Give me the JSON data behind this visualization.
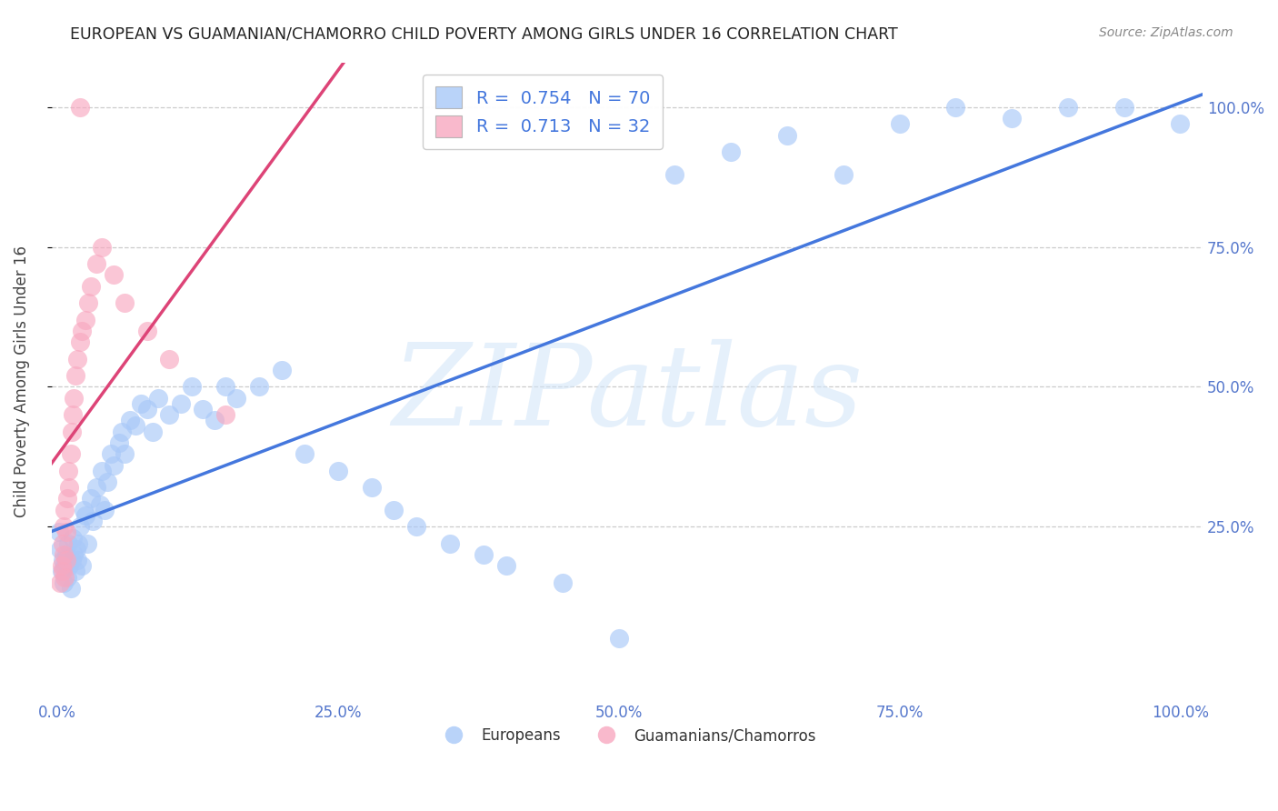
{
  "title": "EUROPEAN VS GUAMANIAN/CHAMORRO CHILD POVERTY AMONG GIRLS UNDER 16 CORRELATION CHART",
  "source": "Source: ZipAtlas.com",
  "ylabel": "Child Poverty Among Girls Under 16",
  "watermark": "ZIPatlas",
  "xlim": [
    -0.005,
    1.02
  ],
  "ylim": [
    -0.06,
    1.08
  ],
  "xticks": [
    0,
    0.25,
    0.5,
    0.75,
    1.0
  ],
  "yticks": [
    0.25,
    0.5,
    0.75,
    1.0
  ],
  "xticklabels": [
    "0.0%",
    "25.0%",
    "50.0%",
    "75.0%",
    "100.0%"
  ],
  "yticklabels": [
    "25.0%",
    "50.0%",
    "75.0%",
    "100.0%"
  ],
  "european_color": "#A8C8F8",
  "guamanian_color": "#F8A8C0",
  "trendline_european_color": "#4477DD",
  "trendline_guamanian_color": "#DD4477",
  "legend_R_european": "0.754",
  "legend_N_european": "70",
  "legend_R_guamanian": "0.713",
  "legend_N_guamanian": "32",
  "eu_x": [
    0.002,
    0.003,
    0.004,
    0.005,
    0.006,
    0.007,
    0.008,
    0.009,
    0.01,
    0.011,
    0.012,
    0.013,
    0.014,
    0.015,
    0.016,
    0.017,
    0.018,
    0.019,
    0.02,
    0.022,
    0.024,
    0.025,
    0.027,
    0.03,
    0.032,
    0.035,
    0.038,
    0.04,
    0.042,
    0.045,
    0.048,
    0.05,
    0.055,
    0.058,
    0.06,
    0.065,
    0.07,
    0.075,
    0.08,
    0.085,
    0.09,
    0.1,
    0.11,
    0.12,
    0.13,
    0.14,
    0.15,
    0.16,
    0.18,
    0.2,
    0.22,
    0.25,
    0.28,
    0.3,
    0.32,
    0.35,
    0.38,
    0.4,
    0.45,
    0.5,
    0.55,
    0.6,
    0.65,
    0.7,
    0.75,
    0.8,
    0.85,
    0.9,
    0.95,
    1.0
  ],
  "eu_y": [
    0.24,
    0.21,
    0.17,
    0.19,
    0.15,
    0.18,
    0.2,
    0.16,
    0.22,
    0.18,
    0.14,
    0.19,
    0.23,
    0.2,
    0.17,
    0.21,
    0.19,
    0.22,
    0.25,
    0.18,
    0.28,
    0.27,
    0.22,
    0.3,
    0.26,
    0.32,
    0.29,
    0.35,
    0.28,
    0.33,
    0.38,
    0.36,
    0.4,
    0.42,
    0.38,
    0.44,
    0.43,
    0.47,
    0.46,
    0.42,
    0.48,
    0.45,
    0.47,
    0.5,
    0.46,
    0.44,
    0.5,
    0.48,
    0.5,
    0.53,
    0.38,
    0.35,
    0.32,
    0.28,
    0.25,
    0.22,
    0.2,
    0.18,
    0.15,
    0.05,
    0.88,
    0.92,
    0.95,
    0.88,
    0.97,
    1.0,
    0.98,
    1.0,
    1.0,
    0.97
  ],
  "gu_x": [
    0.003,
    0.004,
    0.005,
    0.005,
    0.006,
    0.006,
    0.007,
    0.007,
    0.008,
    0.008,
    0.009,
    0.01,
    0.011,
    0.012,
    0.013,
    0.014,
    0.015,
    0.016,
    0.018,
    0.02,
    0.022,
    0.025,
    0.028,
    0.03,
    0.035,
    0.04,
    0.05,
    0.06,
    0.08,
    0.1,
    0.15,
    0.02
  ],
  "gu_y": [
    0.15,
    0.18,
    0.17,
    0.22,
    0.2,
    0.25,
    0.16,
    0.28,
    0.19,
    0.24,
    0.3,
    0.35,
    0.32,
    0.38,
    0.42,
    0.45,
    0.48,
    0.52,
    0.55,
    0.58,
    0.6,
    0.62,
    0.65,
    0.68,
    0.72,
    0.75,
    0.7,
    0.65,
    0.6,
    0.55,
    0.45,
    1.0
  ],
  "background_color": "#FFFFFF",
  "grid_color": "#CCCCCC"
}
